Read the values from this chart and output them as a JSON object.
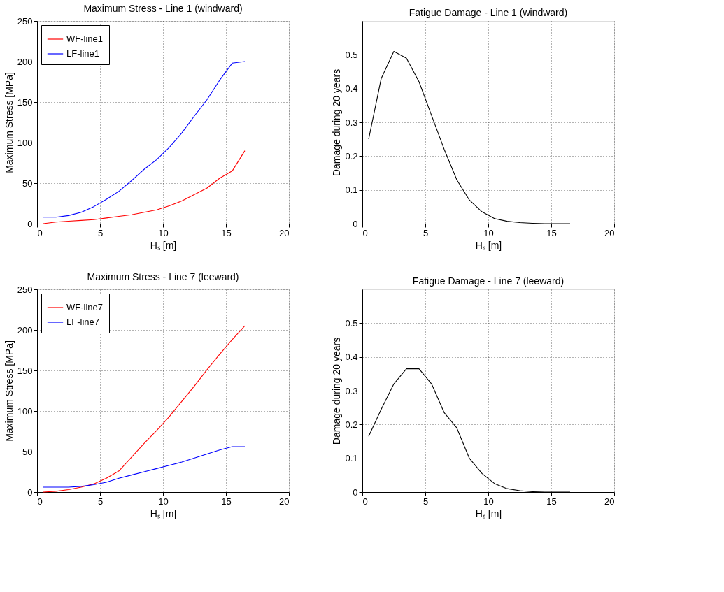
{
  "chart_data": [
    {
      "type": "line",
      "title": "Maximum Stress - Line 1 (windward)",
      "xlabel": "Hₛ [m]",
      "ylabel": "Maximum Stress [MPa]",
      "x": [
        0.5,
        1.5,
        2.5,
        3.5,
        4.5,
        5.5,
        6.5,
        7.5,
        8.5,
        9.5,
        10.5,
        11.5,
        12.5,
        13.5,
        14.5,
        15.5,
        16.5
      ],
      "xlim": [
        0,
        20
      ],
      "xticks": [
        0,
        5,
        10,
        15,
        20
      ],
      "ylim": [
        0,
        250
      ],
      "yticks": [
        0,
        50,
        100,
        150,
        200,
        250
      ],
      "grid": true,
      "legend": "top left",
      "line_style": "solid",
      "marker": "none",
      "series": [
        {
          "name": "WF-line1",
          "color": "#ff0000",
          "values": [
            0,
            2,
            3,
            4,
            5,
            7,
            9,
            11,
            14,
            17,
            22,
            28,
            36,
            44,
            56,
            65,
            90
          ]
        },
        {
          "name": "LF-line1",
          "color": "#0000ff",
          "values": [
            8,
            8,
            10,
            14,
            21,
            30,
            40,
            53,
            67,
            79,
            94,
            112,
            133,
            153,
            177,
            198,
            200
          ]
        }
      ]
    },
    {
      "type": "line",
      "title": "Fatigue Damage - Line 1 (windward)",
      "xlabel": "Hₛ [m]",
      "ylabel": "Damage during 20 years",
      "x": [
        0.5,
        1.5,
        2.5,
        3.5,
        4.5,
        5.5,
        6.5,
        7.5,
        8.5,
        9.5,
        10.5,
        11.5,
        12.5,
        13.5,
        14.5,
        15.5,
        16.5
      ],
      "xlim": [
        0,
        20
      ],
      "xticks": [
        0,
        5,
        10,
        15,
        20
      ],
      "ylim": [
        0,
        0.6
      ],
      "yticks": [
        0,
        0.1,
        0.2,
        0.3,
        0.4,
        0.5
      ],
      "grid": true,
      "legend": false,
      "line_style": "solid",
      "marker": "none",
      "series": [
        {
          "color": "#000000",
          "values": [
            0.25,
            0.43,
            0.51,
            0.49,
            0.42,
            0.32,
            0.22,
            0.13,
            0.07,
            0.035,
            0.015,
            0.007,
            0.003,
            0.001,
            0,
            0,
            0
          ]
        }
      ]
    },
    {
      "type": "line",
      "title": "Maximum Stress - Line 7 (leeward)",
      "xlabel": "Hₛ [m]",
      "ylabel": "Maximum Stress [MPa]",
      "x": [
        0.5,
        1.5,
        2.5,
        3.5,
        4.5,
        5.5,
        6.5,
        7.5,
        8.5,
        9.5,
        10.5,
        11.5,
        12.5,
        13.5,
        14.5,
        15.5,
        16.5
      ],
      "xlim": [
        0,
        20
      ],
      "xticks": [
        0,
        5,
        10,
        15,
        20
      ],
      "ylim": [
        0,
        250
      ],
      "yticks": [
        0,
        50,
        100,
        150,
        200,
        250
      ],
      "grid": true,
      "legend": "top left",
      "line_style": "solid",
      "marker": "none",
      "series": [
        {
          "name": "WF-line7",
          "color": "#ff0000",
          "values": [
            0,
            1,
            3,
            6,
            10,
            17,
            26,
            43,
            60,
            76,
            93,
            112,
            131,
            151,
            170,
            188,
            205
          ]
        },
        {
          "name": "LF-line7",
          "color": "#0000ff",
          "values": [
            6,
            6,
            6,
            7,
            9,
            12,
            17,
            21,
            25,
            29,
            33,
            37,
            42,
            47,
            52,
            56,
            56
          ]
        }
      ]
    },
    {
      "type": "line",
      "title": "Fatigue Damage - Line 7 (leeward)",
      "xlabel": "Hₛ [m]",
      "ylabel": "Damage during 20 years",
      "x": [
        0.5,
        1.5,
        2.5,
        3.5,
        4.5,
        5.5,
        6.5,
        7.5,
        8.5,
        9.5,
        10.5,
        11.5,
        12.5,
        13.5,
        14.5,
        15.5,
        16.5
      ],
      "xlim": [
        0,
        20
      ],
      "xticks": [
        0,
        5,
        10,
        15,
        20
      ],
      "ylim": [
        0,
        0.6
      ],
      "yticks": [
        0,
        0.1,
        0.2,
        0.3,
        0.4,
        0.5
      ],
      "grid": true,
      "legend": false,
      "line_style": "solid",
      "marker": "none",
      "series": [
        {
          "color": "#000000",
          "values": [
            0.165,
            0.245,
            0.32,
            0.365,
            0.365,
            0.32,
            0.235,
            0.19,
            0.1,
            0.055,
            0.025,
            0.01,
            0.004,
            0.001,
            0,
            0,
            0
          ]
        }
      ]
    }
  ]
}
